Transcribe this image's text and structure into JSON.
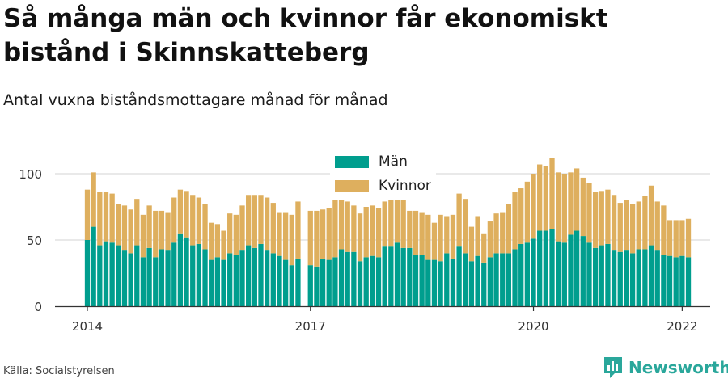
{
  "title": "Så många män och kvinnor får ekonomiskt bistånd i Skinnskatteberg",
  "subtitle": "Antal vuxna biståndsmottagare månad för månad",
  "source": "Källa: Socialstyrelsen",
  "brand": {
    "name": "Newsworthy",
    "logo_icon": "bar-chart-logo-icon"
  },
  "colors": {
    "man": "#009e8e",
    "kvinnor": "#deaf5e",
    "grid": "#e2e2e2",
    "brand": "#2aa79b"
  },
  "chart_data": {
    "type": "bar",
    "stacked": true,
    "x_start": "2014-01",
    "x_end": "2022-01",
    "xticks": [
      "2014",
      "2017",
      "2020",
      "2022"
    ],
    "yticks": [
      0,
      50,
      100
    ],
    "ylim": [
      0,
      115
    ],
    "grid": true,
    "legend_position": "top-center",
    "series": [
      {
        "name": "Män",
        "values": [
          50,
          60,
          46,
          49,
          48,
          46,
          42,
          40,
          46,
          37,
          44,
          37,
          43,
          42,
          48,
          55,
          52,
          46,
          47,
          43,
          35,
          37,
          35,
          40,
          39,
          42,
          46,
          44,
          47,
          42,
          40,
          38,
          35,
          31,
          36,
          null,
          31,
          30,
          36,
          35,
          37,
          43,
          41,
          41,
          34,
          37,
          38,
          37,
          45,
          45,
          48,
          44,
          44,
          39,
          39,
          35,
          35,
          34,
          40,
          36,
          45,
          40,
          34,
          38,
          33,
          37,
          40,
          40,
          40,
          43,
          47,
          48,
          51,
          57,
          57,
          58,
          49,
          48,
          54,
          57,
          53,
          48,
          44,
          46,
          47,
          42,
          41,
          42,
          40,
          43,
          43,
          46,
          42,
          39,
          38,
          37,
          38,
          37
        ]
      },
      {
        "name": "Kvinnor",
        "values": [
          38,
          41,
          40,
          37,
          37,
          31,
          34,
          33,
          35,
          32,
          32,
          35,
          29,
          29,
          34,
          33,
          35,
          38,
          35,
          34,
          28,
          25,
          22,
          30,
          30,
          34,
          38,
          40,
          37,
          40,
          38,
          33,
          36,
          38,
          43,
          null,
          41,
          42,
          37,
          39,
          43,
          38,
          38,
          35,
          36,
          38,
          38,
          37,
          34,
          36,
          34,
          37,
          28,
          33,
          32,
          34,
          28,
          35,
          28,
          33,
          40,
          41,
          26,
          30,
          22,
          27,
          30,
          31,
          37,
          43,
          42,
          46,
          49,
          50,
          49,
          54,
          52,
          52,
          47,
          47,
          44,
          45,
          42,
          41,
          41,
          42,
          37,
          38,
          37,
          36,
          40,
          45,
          37,
          37,
          27,
          28,
          27,
          29
        ]
      }
    ]
  }
}
